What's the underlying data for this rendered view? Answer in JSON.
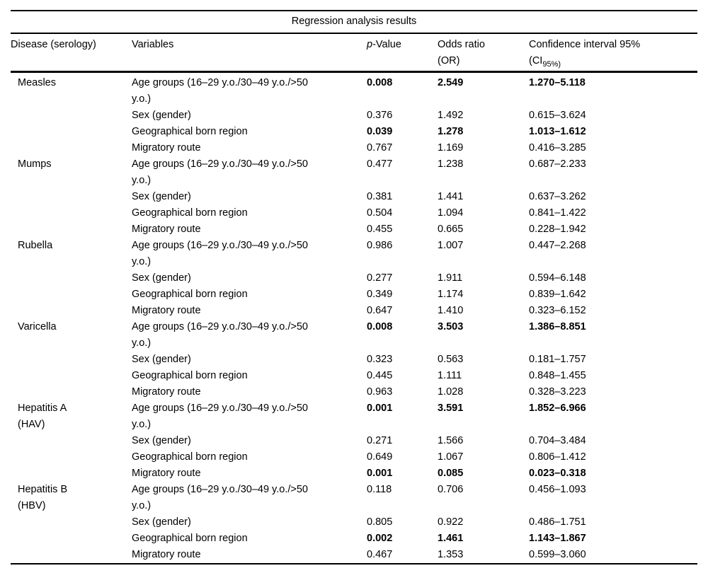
{
  "table": {
    "title": "Regression analysis results",
    "headers": {
      "disease": "Disease (serology)",
      "variables": "Variables",
      "p_italic": "p",
      "p_rest": "-Value",
      "odds_line1": "Odds ratio",
      "odds_line2": "(OR)",
      "ci_line1": "Confidence interval 95%",
      "ci_open": "(CI",
      "ci_sub": "95%)"
    },
    "groups": [
      {
        "disease": "Measles",
        "rows": [
          {
            "variable": "Age groups (16–29 y.o./30–49 y.o./>50\ny.o.)",
            "p_value": "0.008",
            "odds_ratio": "2.549",
            "ci": "1.270–5.118",
            "significant": true
          },
          {
            "variable": "Sex (gender)",
            "p_value": "0.376",
            "odds_ratio": "1.492",
            "ci": "0.615–3.624",
            "significant": false
          },
          {
            "variable": "Geographical born region",
            "p_value": "0.039",
            "odds_ratio": "1.278",
            "ci": "1.013–1.612",
            "significant": true
          },
          {
            "variable": "Migratory route",
            "p_value": "0.767",
            "odds_ratio": "1.169",
            "ci": "0.416–3.285",
            "significant": false
          }
        ]
      },
      {
        "disease": "Mumps",
        "rows": [
          {
            "variable": "Age groups (16–29 y.o./30–49 y.o./>50\ny.o.)",
            "p_value": "0.477",
            "odds_ratio": "1.238",
            "ci": "0.687–2.233",
            "significant": false
          },
          {
            "variable": "Sex (gender)",
            "p_value": "0.381",
            "odds_ratio": "1.441",
            "ci": "0.637–3.262",
            "significant": false
          },
          {
            "variable": "Geographical born region",
            "p_value": "0.504",
            "odds_ratio": "1.094",
            "ci": "0.841–1.422",
            "significant": false
          },
          {
            "variable": "Migratory route",
            "p_value": "0.455",
            "odds_ratio": "0.665",
            "ci": "0.228–1.942",
            "significant": false
          }
        ]
      },
      {
        "disease": "Rubella",
        "rows": [
          {
            "variable": "Age groups (16–29 y.o./30–49 y.o./>50\ny.o.)",
            "p_value": "0.986",
            "odds_ratio": "1.007",
            "ci": "0.447–2.268",
            "significant": false
          },
          {
            "variable": "Sex (gender)",
            "p_value": "0.277",
            "odds_ratio": "1.911",
            "ci": "0.594–6.148",
            "significant": false
          },
          {
            "variable": "Geographical born region",
            "p_value": "0.349",
            "odds_ratio": "1.174",
            "ci": "0.839–1.642",
            "significant": false
          },
          {
            "variable": "Migratory route",
            "p_value": "0.647",
            "odds_ratio": "1.410",
            "ci": "0.323–6.152",
            "significant": false
          }
        ]
      },
      {
        "disease": "Varicella",
        "rows": [
          {
            "variable": "Age groups (16–29 y.o./30–49 y.o./>50\ny.o.)",
            "p_value": "0.008",
            "odds_ratio": "3.503",
            "ci": "1.386–8.851",
            "significant": true
          },
          {
            "variable": "Sex (gender)",
            "p_value": "0.323",
            "odds_ratio": "0.563",
            "ci": "0.181–1.757",
            "significant": false
          },
          {
            "variable": "Geographical born region",
            "p_value": "0.445",
            "odds_ratio": "1.111",
            "ci": "0.848–1.455",
            "significant": false
          },
          {
            "variable": "Migratory route",
            "p_value": "0.963",
            "odds_ratio": "1.028",
            "ci": "0.328–3.223",
            "significant": false
          }
        ]
      },
      {
        "disease": "Hepatitis A\n(HAV)",
        "rows": [
          {
            "variable": "Age groups (16–29 y.o./30–49 y.o./>50\ny.o.)",
            "p_value": "0.001",
            "odds_ratio": "3.591",
            "ci": "1.852–6.966",
            "significant": true
          },
          {
            "variable": "Sex (gender)",
            "p_value": "0.271",
            "odds_ratio": "1.566",
            "ci": "0.704–3.484",
            "significant": false
          },
          {
            "variable": "Geographical born region",
            "p_value": "0.649",
            "odds_ratio": "1.067",
            "ci": "0.806–1.412",
            "significant": false
          },
          {
            "variable": "Migratory route",
            "p_value": "0.001",
            "odds_ratio": "0.085",
            "ci": "0.023–0.318",
            "significant": true
          }
        ]
      },
      {
        "disease": "Hepatitis B\n(HBV)",
        "rows": [
          {
            "variable": "Age groups (16–29 y.o./30–49 y.o./>50\ny.o.)",
            "p_value": "0.118",
            "odds_ratio": "0.706",
            "ci": "0.456–1.093",
            "significant": false
          },
          {
            "variable": "Sex (gender)",
            "p_value": "0.805",
            "odds_ratio": "0.922",
            "ci": "0.486–1.751",
            "significant": false
          },
          {
            "variable": "Geographical born region",
            "p_value": "0.002",
            "odds_ratio": "1.461",
            "ci": "1.143–1.867",
            "significant": true
          },
          {
            "variable": "Migratory route",
            "p_value": "0.467",
            "odds_ratio": "1.353",
            "ci": "0.599–3.060",
            "significant": false
          }
        ]
      }
    ]
  }
}
